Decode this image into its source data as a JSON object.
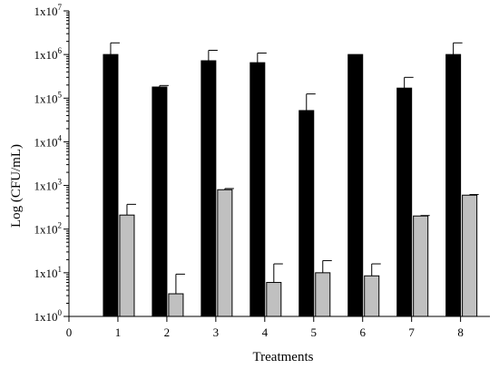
{
  "chart_data": {
    "type": "bar",
    "title": "",
    "xlabel": "Treatments",
    "ylabel": "Log (CFU/mL)",
    "y_scale": "log",
    "ylim": [
      1,
      10000000
    ],
    "xlim": [
      0,
      8.6
    ],
    "x_ticks": [
      "0",
      "1",
      "2",
      "3",
      "4",
      "5",
      "6",
      "7",
      "8"
    ],
    "y_ticks": [
      {
        "base": "1x10",
        "exp": "0",
        "value": 1
      },
      {
        "base": "1x10",
        "exp": "1",
        "value": 10
      },
      {
        "base": "1x10",
        "exp": "2",
        "value": 100
      },
      {
        "base": "1x10",
        "exp": "3",
        "value": 1000
      },
      {
        "base": "1x10",
        "exp": "4",
        "value": 10000
      },
      {
        "base": "1x10",
        "exp": "5",
        "value": 100000
      },
      {
        "base": "1x10",
        "exp": "6",
        "value": 1000000
      },
      {
        "base": "1x10",
        "exp": "7",
        "value": 10000000
      }
    ],
    "categories": [
      1,
      2,
      3,
      4,
      5,
      6,
      7,
      8
    ],
    "series": [
      {
        "color": "#000000",
        "values": [
          1000000,
          180000,
          720000,
          650000,
          52000,
          1000000,
          170000,
          1000000
        ],
        "error_upper": [
          1850000,
          195000,
          1250000,
          1080000,
          125000,
          1000000,
          300000,
          1850000
        ]
      },
      {
        "color": "#c0c0c0",
        "values": [
          210,
          3.3,
          800,
          6,
          10,
          8.5,
          200,
          600
        ],
        "error_upper": [
          370,
          9.3,
          850,
          16,
          19,
          16,
          205,
          620
        ]
      }
    ],
    "grid": false,
    "legend": "none"
  }
}
